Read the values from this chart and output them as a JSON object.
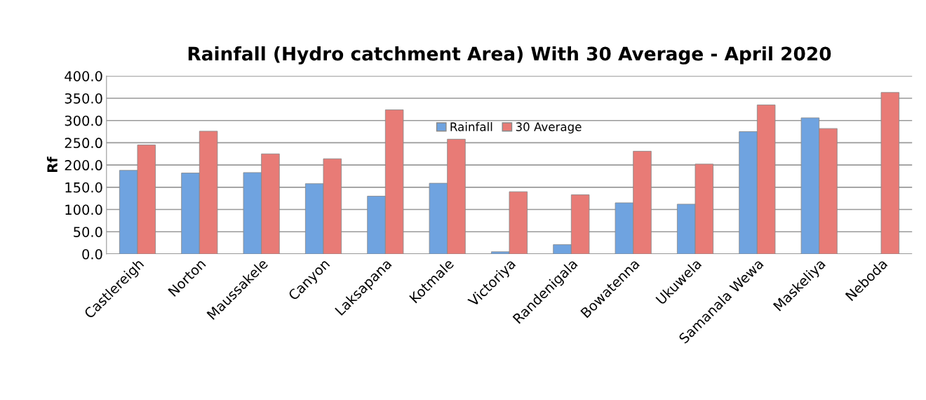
{
  "chart_data": {
    "type": "bar",
    "title": "Rainfall (Hydro catchment Area) With 30 Average - April 2020",
    "ylabel": "Rf",
    "categories": [
      "Castlereigh",
      "Norton",
      "Maussakele",
      "Canyon",
      "Laksapana",
      "Kotmale",
      "Victoriya",
      "Randenigala",
      "Bowatenna",
      "Ukuwela",
      "Samanala Wewa",
      "Maskeliya",
      "Neboda"
    ],
    "series": [
      {
        "name": "Rainfall",
        "color": "#6fa3e0",
        "values": [
          188,
          182,
          183,
          158,
          130,
          159,
          5,
          21,
          115,
          112,
          275,
          306,
          null
        ]
      },
      {
        "name": "30 Average",
        "color": "#e87b76",
        "values": [
          245,
          276,
          225,
          214,
          324,
          258,
          140,
          133,
          231,
          202,
          335,
          282,
          363
        ]
      }
    ],
    "ylim": [
      0,
      400
    ],
    "yticks": [
      {
        "value": 0,
        "label": "0.0"
      },
      {
        "value": 50,
        "label": "50.0"
      },
      {
        "value": 100,
        "label": "100.0"
      },
      {
        "value": 150,
        "label": "150.0"
      },
      {
        "value": 200,
        "label": "200.0"
      },
      {
        "value": 250,
        "label": "250.0"
      },
      {
        "value": 300,
        "label": "300.0"
      },
      {
        "value": 350,
        "label": "350.0"
      },
      {
        "value": 400,
        "label": "400.0"
      }
    ],
    "grid": "y",
    "legend": "top"
  }
}
